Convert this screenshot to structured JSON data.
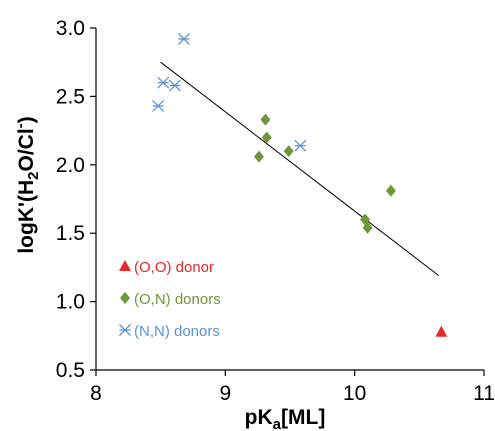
{
  "chart_data": {
    "type": "scatter",
    "xlabel": {
      "main": "pK",
      "sub": "a",
      "tail": "[ML]"
    },
    "ylabel": {
      "t1": "logK'(H",
      "s1": "2",
      "t2": "O/Cl",
      "sup": "-",
      "t3": ")"
    },
    "xlim": [
      8,
      11
    ],
    "ylim": [
      0.5,
      3.0
    ],
    "xticks": [
      8,
      9,
      10,
      11
    ],
    "yticks": [
      0.5,
      1.0,
      1.5,
      2.0,
      2.5,
      3.0
    ],
    "xtick_labels": [
      "8",
      "9",
      "10",
      "11"
    ],
    "ytick_labels": [
      "0.5",
      "1.0",
      "1.5",
      "2.0",
      "2.5",
      "3.0"
    ],
    "grid": false,
    "legend_position": "bottom-left",
    "series": [
      {
        "name": "(O,O) donor",
        "marker": "triangle",
        "color": "#e8282b",
        "points": [
          [
            10.67,
            0.78
          ]
        ]
      },
      {
        "name": "(O,N) donors",
        "marker": "diamond",
        "color": "#70963a",
        "points": [
          [
            9.26,
            2.06
          ],
          [
            9.31,
            2.33
          ],
          [
            9.32,
            2.2
          ],
          [
            9.49,
            2.1
          ],
          [
            10.08,
            1.6
          ],
          [
            10.1,
            1.54
          ],
          [
            10.28,
            1.81
          ]
        ]
      },
      {
        "name": "(N,N) donors",
        "marker": "asterisk",
        "color": "#5b93d6",
        "points": [
          [
            8.48,
            2.43
          ],
          [
            8.52,
            2.6
          ],
          [
            8.61,
            2.58
          ],
          [
            8.68,
            2.92
          ],
          [
            9.58,
            2.14
          ]
        ]
      }
    ],
    "trendline": {
      "x": [
        8.5,
        10.65
      ],
      "y": [
        2.75,
        1.19
      ]
    }
  }
}
